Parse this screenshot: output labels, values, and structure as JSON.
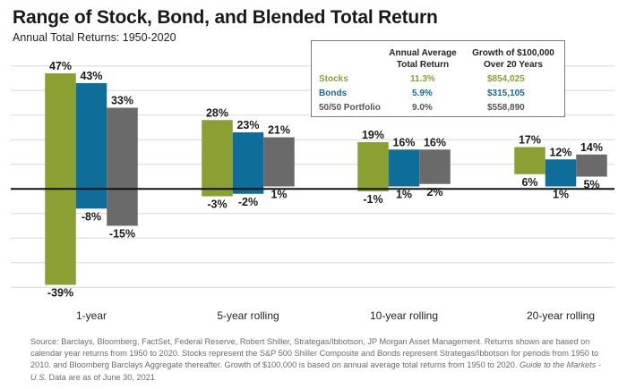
{
  "title": "Range of Stock, Bond, and Blended Total Return",
  "subtitle": "Annual Total Returns: 1950-2020",
  "colors": {
    "stocks": "#8aa032",
    "bonds": "#0f6d99",
    "blend": "#6a6a6a",
    "grid": "#d8d8d8",
    "zero": "#111111"
  },
  "legend": {
    "header_avg": "Annual Average Total Return",
    "header_growth": "Growth of $100,000 Over 20 Years",
    "rows": [
      {
        "name": "Stocks",
        "avg": "11.3%",
        "growth": "$854,025",
        "color": "#8aa032"
      },
      {
        "name": "Bonds",
        "avg": "5.9%",
        "growth": "$315,105",
        "color": "#0f6d99"
      },
      {
        "name": "50/50 Portfolio",
        "avg": "9.0%",
        "growth": "$558,890",
        "color": "#555555"
      }
    ]
  },
  "chart_data": {
    "type": "bar",
    "categories": [
      "1-year",
      "5-year rolling",
      "10-year rolling",
      "20-year rolling"
    ],
    "series": [
      {
        "name": "Stocks",
        "color": "#8aa032",
        "high": [
          47,
          28,
          19,
          17
        ],
        "low": [
          -39,
          -3,
          -1,
          6
        ],
        "high_labels": [
          "47%",
          "28%",
          "19%",
          "17%"
        ],
        "low_labels": [
          "-39%",
          "-3%",
          "-1%",
          "6%"
        ]
      },
      {
        "name": "Bonds",
        "color": "#0f6d99",
        "high": [
          43,
          23,
          16,
          12
        ],
        "low": [
          -8,
          -2,
          1,
          1
        ],
        "high_labels": [
          "43%",
          "23%",
          "16%",
          "12%"
        ],
        "low_labels": [
          "-8%",
          "-2%",
          "1%",
          "1%"
        ]
      },
      {
        "name": "50/50 Portfolio",
        "color": "#6a6a6a",
        "high": [
          33,
          21,
          16,
          14
        ],
        "low": [
          -15,
          1,
          2,
          5
        ],
        "high_labels": [
          "33%",
          "21%",
          "16%",
          "14%"
        ],
        "low_labels": [
          "-15%",
          "1%",
          "2%",
          "5%"
        ]
      }
    ],
    "ylim": [
      -45,
      55
    ],
    "grid": true,
    "legend_position": "top-right"
  },
  "footnote": {
    "text": "Source: Barclays, Bloomberg, FactSet, Federal Reserve, Robert Shiller, Strategas/Ibbotson, JP Morgan Asset Management. Returns shown are based on calendar year returns from 1950 to 2020. Stocks represent the S&P 500 Shiller Composite and Bonds represent Strategas/Ibbotson for periods from 1950 to 2010. and Bloomberg Barclays Aggregate thereafter. Growth of $100,000 is based on annual average total returns from 1950 to 2020.",
    "italic": "Guide to the Markets - U.S.",
    "tail": "Data are as of June 30, 2021"
  }
}
